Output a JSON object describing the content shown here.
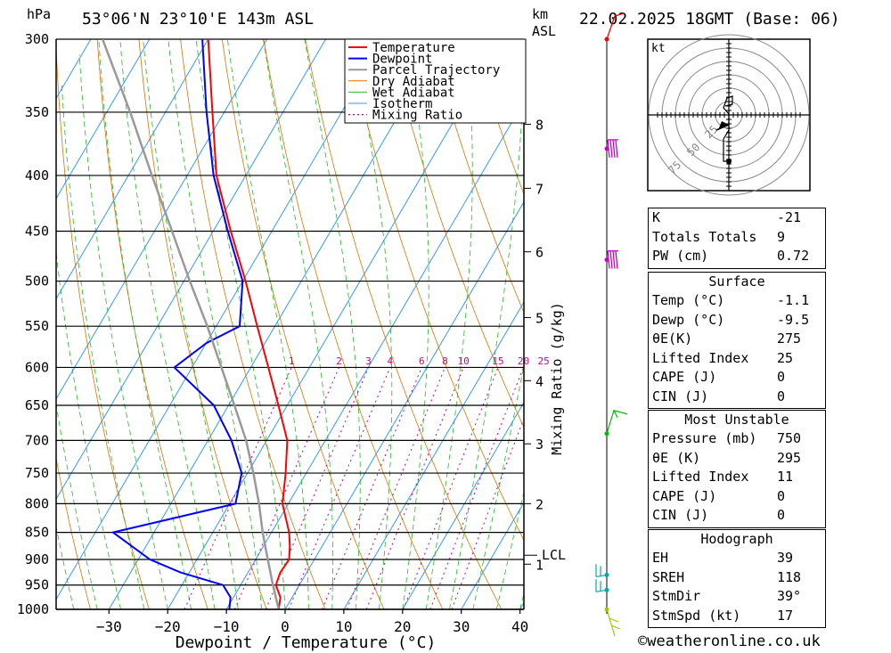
{
  "header": {
    "pressure_unit": "hPa",
    "location": "53°06'N  23°10'E  143m  ASL",
    "height_unit": "km",
    "height_unit_sub": "ASL",
    "datetime": "22.02.2025  18GMT  (Base: 06)"
  },
  "chart_data": {
    "type": "skew-t",
    "xlabel": "Dewpoint / Temperature (°C)",
    "ylabel_right": "Mixing Ratio (g/kg)",
    "x_ticks": [
      -30,
      -20,
      -10,
      0,
      10,
      20,
      30,
      40
    ],
    "pressure_levels": [
      300,
      350,
      400,
      450,
      500,
      550,
      600,
      650,
      700,
      750,
      800,
      850,
      900,
      950,
      1000
    ],
    "km_ticks": [
      {
        "label": "8",
        "p": 359
      },
      {
        "label": "7",
        "p": 411
      },
      {
        "label": "6",
        "p": 470
      },
      {
        "label": "5",
        "p": 540
      },
      {
        "label": "4",
        "p": 617
      },
      {
        "label": "3",
        "p": 705
      },
      {
        "label": "2",
        "p": 800
      },
      {
        "label": "1",
        "p": 909
      }
    ],
    "lcl": {
      "label": "LCL",
      "p": 892
    },
    "mixing_ratio_labels": [
      "1",
      "2",
      "3",
      "4",
      "6",
      "8",
      "10",
      "15",
      "20",
      "25"
    ],
    "mixing_ratio_values": [
      1,
      2,
      3,
      4,
      6,
      8,
      10,
      15,
      20,
      25
    ],
    "legend": [
      "Temperature",
      "Dewpoint",
      "Parcel Trajectory",
      "Dry Adiabat",
      "Wet Adiabat",
      "Isotherm",
      "Mixing Ratio"
    ],
    "series": [
      {
        "name": "Temperature",
        "color": "#ff0000",
        "points": [
          [
            1000,
            -1.1
          ],
          [
            975,
            -2.0
          ],
          [
            950,
            -4.0
          ],
          [
            925,
            -4.5
          ],
          [
            900,
            -4.3
          ],
          [
            875,
            -5.5
          ],
          [
            850,
            -7.0
          ],
          [
            800,
            -11.0
          ],
          [
            750,
            -13.5
          ],
          [
            700,
            -16.5
          ],
          [
            650,
            -21.5
          ],
          [
            600,
            -27.0
          ],
          [
            550,
            -33.0
          ],
          [
            500,
            -39.5
          ],
          [
            450,
            -47.0
          ],
          [
            400,
            -55.0
          ],
          [
            350,
            -62.0
          ],
          [
            300,
            -70.0
          ]
        ]
      },
      {
        "name": "Dewpoint",
        "color": "#0000ff",
        "points": [
          [
            1000,
            -9.5
          ],
          [
            975,
            -10.5
          ],
          [
            950,
            -13.0
          ],
          [
            925,
            -21.5
          ],
          [
            900,
            -28.0
          ],
          [
            850,
            -37.0
          ],
          [
            800,
            -19.0
          ],
          [
            750,
            -21.0
          ],
          [
            700,
            -26.0
          ],
          [
            650,
            -32.5
          ],
          [
            600,
            -43.0
          ],
          [
            570,
            -40.0
          ],
          [
            550,
            -36.0
          ],
          [
            500,
            -40.0
          ],
          [
            450,
            -47.5
          ],
          [
            400,
            -55.5
          ],
          [
            350,
            -63.0
          ],
          [
            300,
            -71.0
          ]
        ]
      },
      {
        "name": "Parcel Trajectory",
        "color": "#999999",
        "points": [
          [
            1000,
            -1.1
          ],
          [
            950,
            -4.5
          ],
          [
            892,
            -8.5
          ],
          [
            850,
            -11.5
          ],
          [
            800,
            -15.0
          ],
          [
            750,
            -19.0
          ],
          [
            700,
            -23.5
          ],
          [
            650,
            -29.0
          ],
          [
            600,
            -35.0
          ],
          [
            550,
            -41.5
          ],
          [
            500,
            -49.0
          ],
          [
            450,
            -57.0
          ],
          [
            400,
            -66.0
          ],
          [
            350,
            -76.0
          ],
          [
            300,
            -88.0
          ]
        ]
      }
    ],
    "wind_barbs": [
      {
        "p": 300,
        "color": "#ff0000"
      },
      {
        "p": 378,
        "color": "#cc00cc"
      },
      {
        "p": 478,
        "color": "#cc00cc"
      },
      {
        "p": 690,
        "color": "#00bb00"
      },
      {
        "p": 930,
        "color": "#00aaaa"
      },
      {
        "p": 960,
        "color": "#00aaaa"
      },
      {
        "p": 1000,
        "color": "#99cc00"
      }
    ],
    "hodograph": {
      "unit": "kt",
      "ring_labels": [
        "25",
        "50",
        "75"
      ]
    }
  },
  "indices": [
    {
      "label": "K",
      "value": "-21"
    },
    {
      "label": "Totals Totals",
      "value": "9"
    },
    {
      "label": "PW (cm)",
      "value": "0.72"
    }
  ],
  "surface": {
    "title": "Surface",
    "rows": [
      {
        "label": "Temp (°C)",
        "value": "-1.1"
      },
      {
        "label": "Dewp (°C)",
        "value": "-9.5"
      },
      {
        "label": "θE(K)",
        "value": "275"
      },
      {
        "label": "Lifted Index",
        "value": "25"
      },
      {
        "label": "CAPE (J)",
        "value": "0"
      },
      {
        "label": "CIN (J)",
        "value": "0"
      }
    ]
  },
  "most_unstable": {
    "title": "Most Unstable",
    "rows": [
      {
        "label": "Pressure (mb)",
        "value": "750"
      },
      {
        "label": "θE (K)",
        "value": "295"
      },
      {
        "label": "Lifted Index",
        "value": "11"
      },
      {
        "label": "CAPE (J)",
        "value": "0"
      },
      {
        "label": "CIN (J)",
        "value": "0"
      }
    ]
  },
  "hodograph_table": {
    "title": "Hodograph",
    "rows": [
      {
        "label": "EH",
        "value": "39"
      },
      {
        "label": "SREH",
        "value": "118"
      },
      {
        "label": "StmDir",
        "value": "39°"
      },
      {
        "label": "StmSpd (kt)",
        "value": "17"
      }
    ]
  },
  "credit": "©weatheronline.co.uk"
}
